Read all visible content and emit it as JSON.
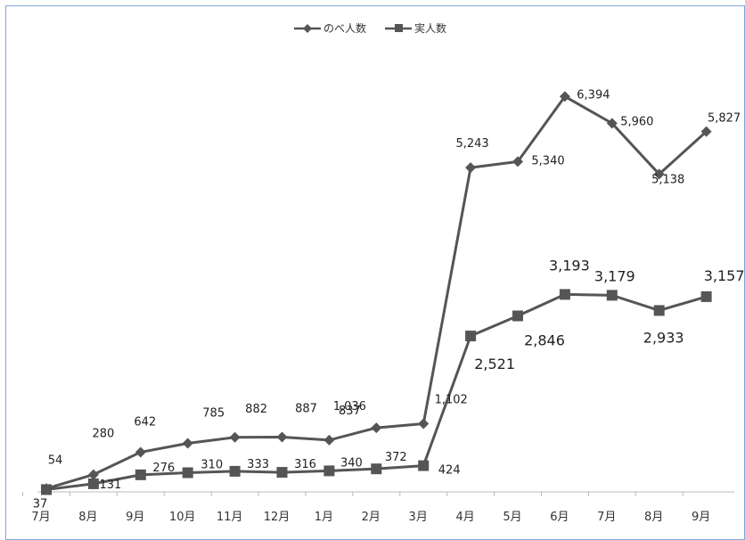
{
  "chart_data": {
    "type": "line",
    "categories": [
      "7月",
      "8月",
      "9月",
      "10月",
      "11月",
      "12月",
      "1月",
      "2月",
      "3月",
      "4月",
      "5月",
      "6月",
      "7月",
      "8月",
      "9月"
    ],
    "series": [
      {
        "name": "のべ人数",
        "marker": "diamond",
        "color": "#555555",
        "values": [
          54,
          280,
          642,
          785,
          882,
          887,
          837,
          1036,
          1102,
          5243,
          5340,
          6394,
          5960,
          5138,
          5827
        ],
        "labels": [
          "54",
          "280",
          "642",
          "785",
          "882",
          "887",
          "837",
          "1,036",
          "1,102",
          "5,243",
          "5,340",
          "6,394",
          "5,960",
          "5,138",
          "5,827"
        ]
      },
      {
        "name": "実人数",
        "marker": "square",
        "color": "#555555",
        "values": [
          37,
          131,
          276,
          310,
          333,
          316,
          340,
          372,
          424,
          2521,
          2846,
          3193,
          3179,
          2933,
          3157
        ],
        "labels": [
          "37",
          "131",
          "276",
          "310",
          "333",
          "316",
          "340",
          "372",
          "424",
          "2,521",
          "2,846",
          "3,193",
          "3,179",
          "2,933",
          "3,157"
        ]
      }
    ],
    "ylim": [
      0,
      7000
    ],
    "grid": false,
    "legend": "top-center",
    "title": "",
    "xlabel": "",
    "ylabel": ""
  }
}
